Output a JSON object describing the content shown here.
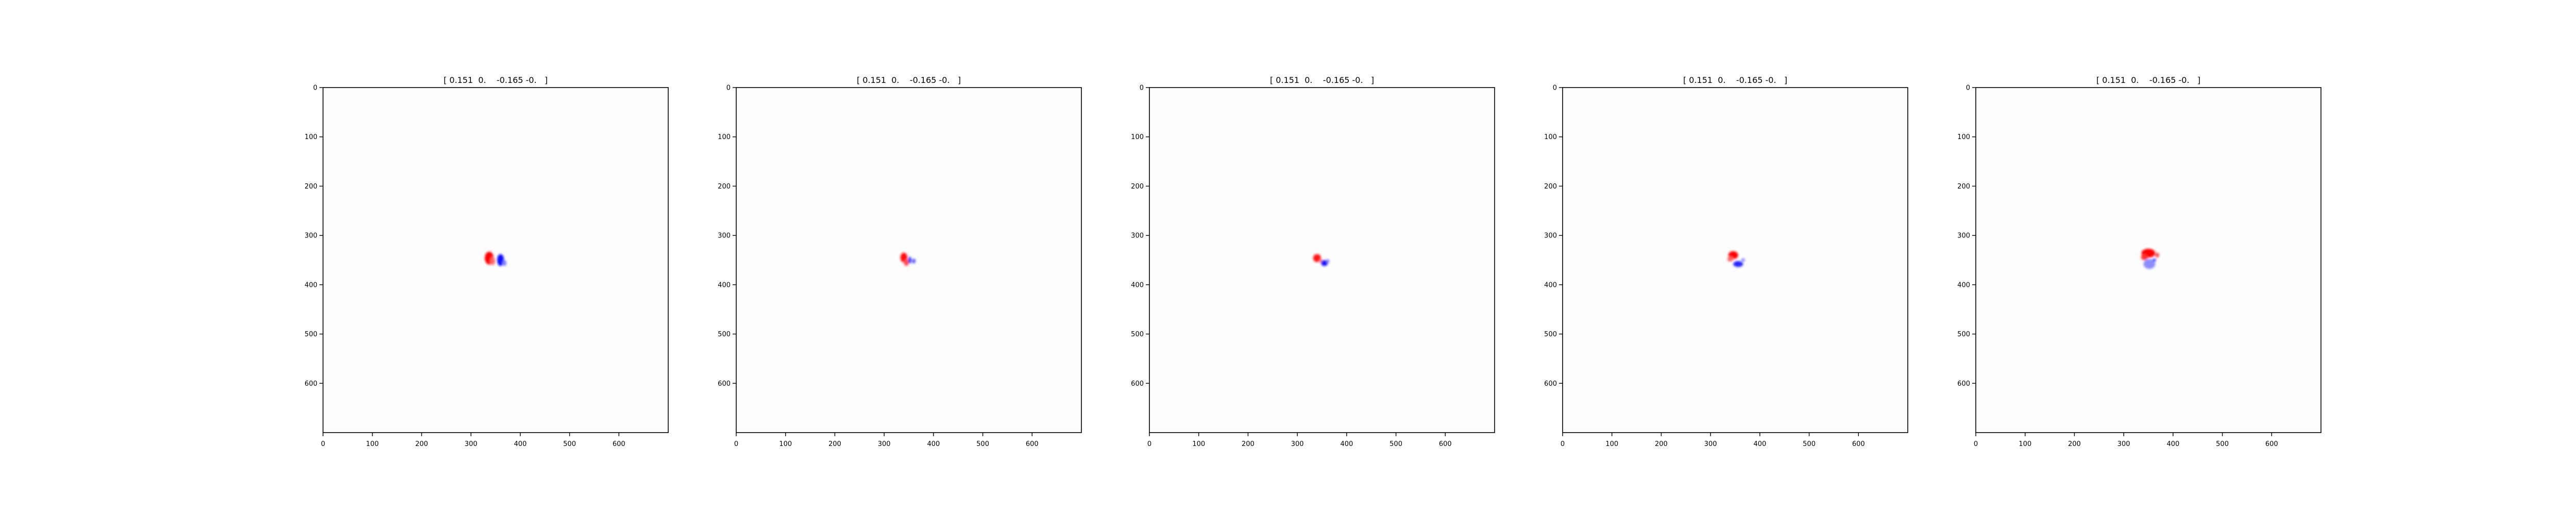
{
  "figure": {
    "background": "#ffffff",
    "panel_count": 5
  },
  "chart_data": [
    {
      "type": "heatmap",
      "title": "[ 0.151  0.    -0.165 -0.   ]",
      "xlabel": "",
      "ylabel": "",
      "xlim": [
        0,
        700
      ],
      "ylim": [
        700,
        0
      ],
      "xticks": [
        0,
        100,
        200,
        300,
        400,
        500,
        600
      ],
      "yticks": [
        0,
        100,
        200,
        300,
        400,
        500,
        600
      ],
      "colormap": "bwr",
      "grid": false,
      "blobs": [
        {
          "x": 337,
          "y": 346,
          "rx": 9,
          "ry": 13,
          "value": 1.0
        },
        {
          "x": 344,
          "y": 352,
          "rx": 5,
          "ry": 8,
          "value": 0.6
        },
        {
          "x": 360,
          "y": 350,
          "rx": 7,
          "ry": 12,
          "value": -0.95
        },
        {
          "x": 368,
          "y": 356,
          "rx": 4,
          "ry": 6,
          "value": -0.5
        }
      ]
    },
    {
      "type": "heatmap",
      "title": "[ 0.151  0.    -0.165 -0.   ]",
      "xlabel": "",
      "ylabel": "",
      "xlim": [
        0,
        700
      ],
      "ylim": [
        700,
        0
      ],
      "xticks": [
        0,
        100,
        200,
        300,
        400,
        500,
        600
      ],
      "yticks": [
        0,
        100,
        200,
        300,
        400,
        500,
        600
      ],
      "colormap": "bwr",
      "grid": false,
      "blobs": [
        {
          "x": 340,
          "y": 345,
          "rx": 7,
          "ry": 10,
          "value": 0.95
        },
        {
          "x": 345,
          "y": 355,
          "rx": 5,
          "ry": 7,
          "value": 0.7
        },
        {
          "x": 352,
          "y": 350,
          "rx": 3,
          "ry": 7,
          "value": -0.8
        },
        {
          "x": 360,
          "y": 352,
          "rx": 4,
          "ry": 5,
          "value": -0.6
        }
      ]
    },
    {
      "type": "heatmap",
      "title": "[ 0.151  0.    -0.165 -0.   ]",
      "xlabel": "",
      "ylabel": "",
      "xlim": [
        0,
        700
      ],
      "ylim": [
        700,
        0
      ],
      "xticks": [
        0,
        100,
        200,
        300,
        400,
        500,
        600
      ],
      "yticks": [
        0,
        100,
        200,
        300,
        400,
        500,
        600
      ],
      "colormap": "bwr",
      "grid": false,
      "blobs": [
        {
          "x": 340,
          "y": 346,
          "rx": 8,
          "ry": 8,
          "value": 0.9
        },
        {
          "x": 348,
          "y": 352,
          "rx": 4,
          "ry": 4,
          "value": 0.5
        },
        {
          "x": 355,
          "y": 356,
          "rx": 7,
          "ry": 6,
          "value": -0.9
        },
        {
          "x": 362,
          "y": 352,
          "rx": 3,
          "ry": 4,
          "value": -0.5
        }
      ]
    },
    {
      "type": "heatmap",
      "title": "[ 0.151  0.    -0.165 -0.   ]",
      "xlabel": "",
      "ylabel": "",
      "xlim": [
        0,
        700
      ],
      "ylim": [
        700,
        0
      ],
      "xticks": [
        0,
        100,
        200,
        300,
        400,
        500,
        600
      ],
      "yticks": [
        0,
        100,
        200,
        300,
        400,
        500,
        600
      ],
      "colormap": "bwr",
      "grid": false,
      "blobs": [
        {
          "x": 346,
          "y": 340,
          "rx": 10,
          "ry": 8,
          "value": 1.0
        },
        {
          "x": 340,
          "y": 348,
          "rx": 6,
          "ry": 5,
          "value": 0.6
        },
        {
          "x": 356,
          "y": 358,
          "rx": 10,
          "ry": 6,
          "value": -0.85
        },
        {
          "x": 366,
          "y": 350,
          "rx": 4,
          "ry": 4,
          "value": -0.4
        }
      ]
    },
    {
      "type": "heatmap",
      "title": "[ 0.151  0.    -0.165 -0.   ]",
      "xlabel": "",
      "ylabel": "",
      "xlim": [
        0,
        700
      ],
      "ylim": [
        700,
        0
      ],
      "xticks": [
        0,
        100,
        200,
        300,
        400,
        500,
        600
      ],
      "yticks": [
        0,
        100,
        200,
        300,
        400,
        500,
        600
      ],
      "colormap": "bwr",
      "grid": false,
      "blobs": [
        {
          "x": 350,
          "y": 336,
          "rx": 14,
          "ry": 9,
          "value": 1.0
        },
        {
          "x": 342,
          "y": 344,
          "rx": 7,
          "ry": 6,
          "value": 0.8
        },
        {
          "x": 368,
          "y": 340,
          "rx": 4,
          "ry": 5,
          "value": 0.7
        },
        {
          "x": 352,
          "y": 358,
          "rx": 12,
          "ry": 10,
          "value": -0.45
        },
        {
          "x": 362,
          "y": 350,
          "rx": 4,
          "ry": 3,
          "value": -0.7
        }
      ]
    }
  ]
}
